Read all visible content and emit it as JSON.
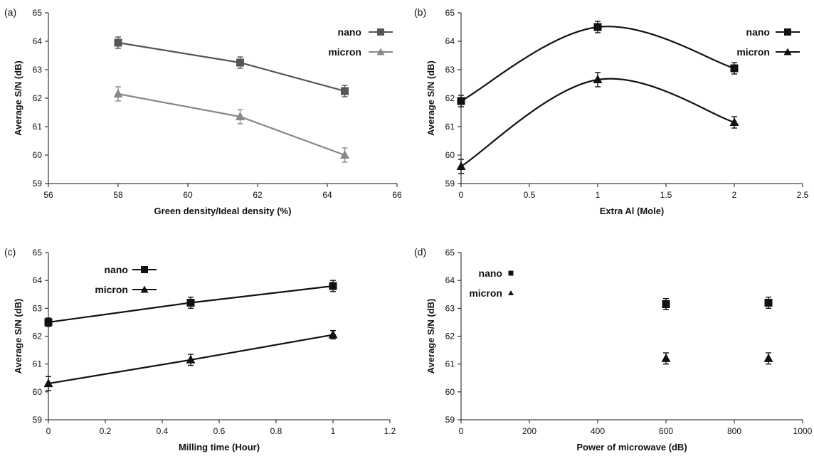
{
  "chart_data": [
    {
      "panel_label": "(a)",
      "type": "line",
      "xlabel": "Green density/Ideal density (%)",
      "ylabel": "Average S/N (dB)",
      "xlim": [
        56,
        66
      ],
      "ylim": [
        59,
        65
      ],
      "xticks": [
        56,
        58,
        60,
        62,
        64,
        66
      ],
      "yticks": [
        59,
        60,
        61,
        62,
        63,
        64,
        65
      ],
      "grid": false,
      "legend_position": "top-right",
      "series": [
        {
          "name": "nano",
          "marker": "square",
          "color": "#555555",
          "x": [
            58,
            61.5,
            64.5
          ],
          "y": [
            63.95,
            63.25,
            62.25
          ],
          "err": [
            0.2,
            0.2,
            0.2
          ]
        },
        {
          "name": "micron",
          "marker": "triangle",
          "color": "#888888",
          "x": [
            58,
            61.5,
            64.5
          ],
          "y": [
            62.15,
            61.35,
            60.0
          ],
          "err": [
            0.25,
            0.25,
            0.25
          ]
        }
      ]
    },
    {
      "panel_label": "(b)",
      "type": "line",
      "xlabel": "Extra Al (Mole)",
      "ylabel": "Average S/N (dB)",
      "xlim": [
        0,
        2.5
      ],
      "ylim": [
        59,
        65
      ],
      "xticks": [
        0,
        0.5,
        1,
        1.5,
        2,
        2.5
      ],
      "yticks": [
        59,
        60,
        61,
        62,
        63,
        64,
        65
      ],
      "grid": false,
      "legend_position": "top-right",
      "series": [
        {
          "name": "nano",
          "marker": "square",
          "color": "#111111",
          "x": [
            0,
            1,
            2
          ],
          "y": [
            61.9,
            64.5,
            63.05
          ],
          "err": [
            0.2,
            0.2,
            0.2
          ]
        },
        {
          "name": "micron",
          "marker": "triangle",
          "color": "#111111",
          "x": [
            0,
            1,
            2
          ],
          "y": [
            59.6,
            62.65,
            61.15
          ],
          "err": [
            0.25,
            0.25,
            0.2
          ]
        }
      ]
    },
    {
      "panel_label": "(c)",
      "type": "line",
      "xlabel": "Milling time (Hour)",
      "ylabel": "Average S/N (dB)",
      "xlim": [
        0,
        1.2
      ],
      "ylim": [
        59,
        65
      ],
      "xticks": [
        0,
        0.2,
        0.4,
        0.6,
        0.8,
        1,
        1.2
      ],
      "yticks": [
        59,
        60,
        61,
        62,
        63,
        64,
        65
      ],
      "grid": false,
      "legend_position": "top-left",
      "series": [
        {
          "name": "nano",
          "marker": "square",
          "color": "#111111",
          "x": [
            0,
            0.5,
            1
          ],
          "y": [
            62.5,
            63.2,
            63.8
          ],
          "err": [
            0.15,
            0.2,
            0.2
          ]
        },
        {
          "name": "micron",
          "marker": "triangle",
          "color": "#111111",
          "x": [
            0,
            0.5,
            1
          ],
          "y": [
            60.3,
            61.15,
            62.05
          ],
          "err": [
            0.25,
            0.2,
            0.15
          ]
        }
      ]
    },
    {
      "panel_label": "(d)",
      "type": "scatter",
      "xlabel": "Power of microwave (dB)",
      "ylabel": "Average S/N (dB)",
      "xlim": [
        0,
        1000
      ],
      "ylim": [
        59,
        65
      ],
      "xticks": [
        0,
        200,
        400,
        600,
        800,
        1000
      ],
      "yticks": [
        59,
        60,
        61,
        62,
        63,
        64,
        65
      ],
      "grid": false,
      "legend_position": "top-left",
      "series": [
        {
          "name": "nano",
          "marker": "square",
          "color": "#111111",
          "x": [
            600,
            900
          ],
          "y": [
            63.15,
            63.2
          ],
          "err": [
            0.2,
            0.2
          ]
        },
        {
          "name": "micron",
          "marker": "triangle",
          "color": "#111111",
          "x": [
            600,
            900
          ],
          "y": [
            61.2,
            61.2
          ],
          "err": [
            0.2,
            0.2
          ]
        }
      ]
    }
  ]
}
